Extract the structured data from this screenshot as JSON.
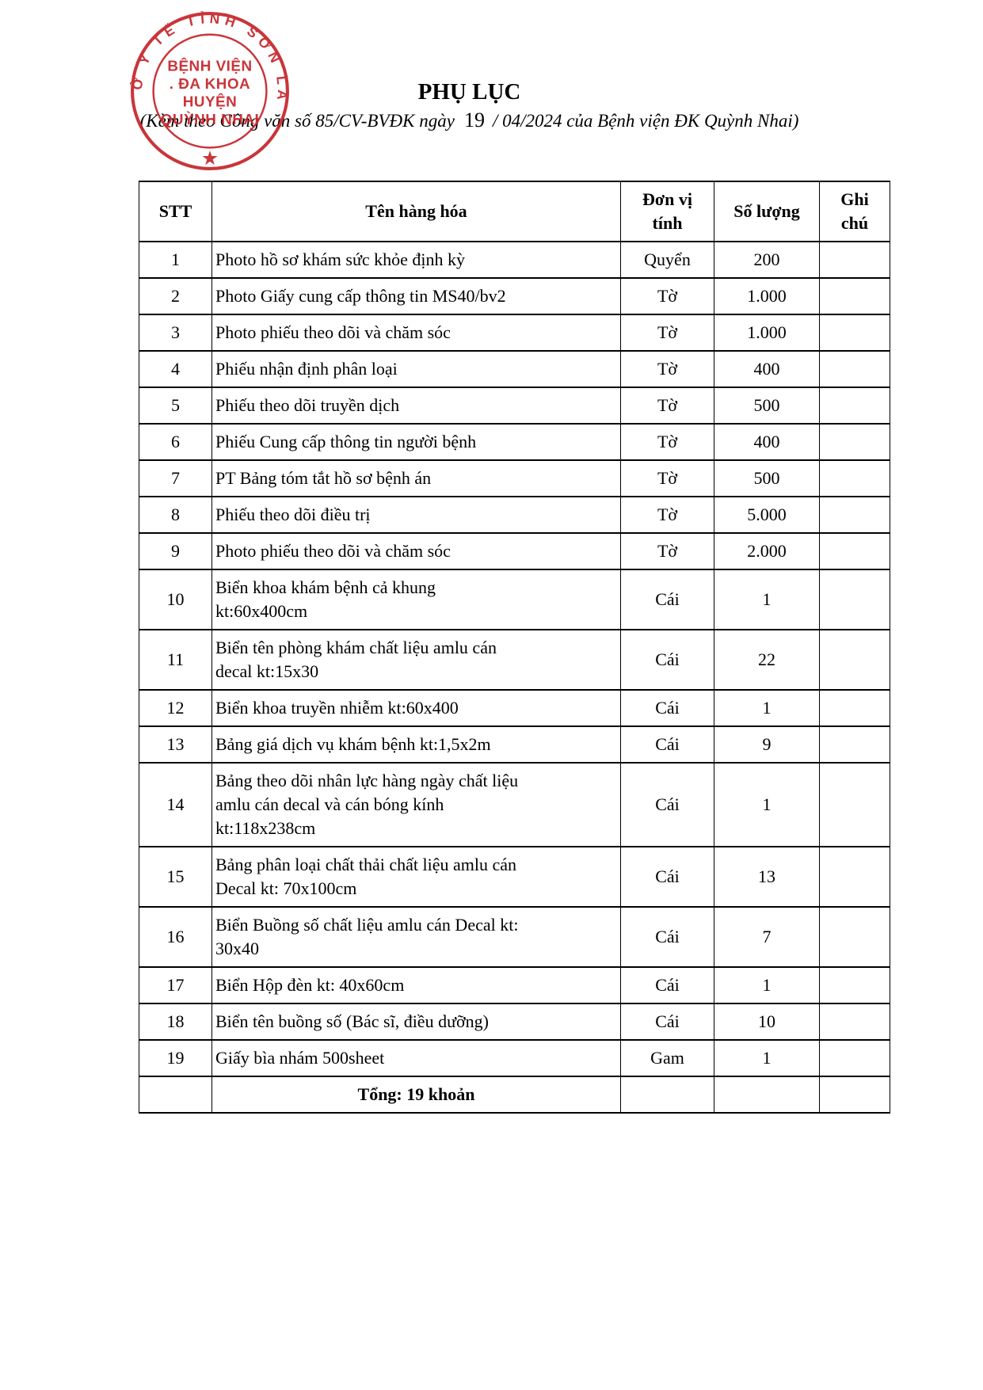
{
  "stamp": {
    "ring_text": "SỞ Y TẾ TỈNH SƠN LA",
    "center_lines": [
      "BỆNH VIỆN",
      ". ĐA KHOA",
      "HUYỆN",
      "QUỲNH NHAI"
    ],
    "star": "★",
    "ink_color": "#c5262c"
  },
  "header": {
    "title": "PHỤ LỤC",
    "subtitle": {
      "prefix": "(Kèm theo Công văn số 85/CV-BVĐK ngày",
      "day": "19",
      "suffix": "/ 04/2024 của Bệnh viện ĐK Quỳnh Nhai)"
    }
  },
  "table": {
    "columns": [
      "STT",
      "Tên hàng hóa",
      "Đơn vị\ntính",
      "Số lượng",
      "Ghi\nchú"
    ],
    "rows": [
      {
        "stt": "1",
        "name": "Photo hồ sơ khám sức khỏe định kỳ",
        "unit": "Quyển",
        "qty": "200",
        "note": ""
      },
      {
        "stt": "2",
        "name": "Photo Giấy cung cấp thông tin MS40/bv2",
        "unit": "Tờ",
        "qty": "1.000",
        "note": ""
      },
      {
        "stt": "3",
        "name": "Photo phiếu theo dõi và chăm sóc",
        "unit": "Tờ",
        "qty": "1.000",
        "note": ""
      },
      {
        "stt": "4",
        "name": "Phiếu nhận định phân loại",
        "unit": "Tờ",
        "qty": "400",
        "note": ""
      },
      {
        "stt": "5",
        "name": "Phiếu theo dõi truyền dịch",
        "unit": "Tờ",
        "qty": "500",
        "note": ""
      },
      {
        "stt": "6",
        "name": "Phiếu Cung cấp thông tin người bệnh",
        "unit": "Tờ",
        "qty": "400",
        "note": ""
      },
      {
        "stt": "7",
        "name": "PT Bảng tóm tắt hồ sơ bệnh án",
        "unit": "Tờ",
        "qty": "500",
        "note": ""
      },
      {
        "stt": "8",
        "name": "Phiếu theo dõi điều trị",
        "unit": "Tờ",
        "qty": "5.000",
        "note": ""
      },
      {
        "stt": "9",
        "name": "Photo phiếu theo dõi và chăm sóc",
        "unit": "Tờ",
        "qty": "2.000",
        "note": ""
      },
      {
        "stt": "10",
        "name": "Biển khoa khám bệnh cả khung\nkt:60x400cm",
        "unit": "Cái",
        "qty": "1",
        "note": ""
      },
      {
        "stt": "11",
        "name": "Biển tên phòng khám chất liệu amlu cán\ndecal kt:15x30",
        "unit": "Cái",
        "qty": "22",
        "note": ""
      },
      {
        "stt": "12",
        "name": "Biển khoa truyền nhiễm kt:60x400",
        "unit": "Cái",
        "qty": "1",
        "note": ""
      },
      {
        "stt": "13",
        "name": "Bảng giá dịch vụ khám bệnh kt:1,5x2m",
        "unit": "Cái",
        "qty": "9",
        "note": ""
      },
      {
        "stt": "14",
        "name": "Bảng theo dõi nhân lực hàng ngày chất liệu\namlu cán decal và cán bóng kính\nkt:118x238cm",
        "unit": "Cái",
        "qty": "1",
        "note": ""
      },
      {
        "stt": "15",
        "name": "Bảng phân loại chất thải chất liệu amlu cán\nDecal kt: 70x100cm",
        "unit": "Cái",
        "qty": "13",
        "note": ""
      },
      {
        "stt": "16",
        "name": "Biển Buồng số chất liệu amlu cán Decal kt:\n30x40",
        "unit": "Cái",
        "qty": "7",
        "note": ""
      },
      {
        "stt": "17",
        "name": "Biển Hộp đèn kt: 40x60cm",
        "unit": "Cái",
        "qty": "1",
        "note": ""
      },
      {
        "stt": "18",
        "name": "Biển tên buồng số (Bác sĩ, điều dưỡng)",
        "unit": "Cái",
        "qty": "10",
        "note": ""
      },
      {
        "stt": "19",
        "name": "Giấy bìa nhám 500sheet",
        "unit": "Gam",
        "qty": "1",
        "note": ""
      }
    ],
    "total_label": "Tổng: 19 khoản"
  }
}
